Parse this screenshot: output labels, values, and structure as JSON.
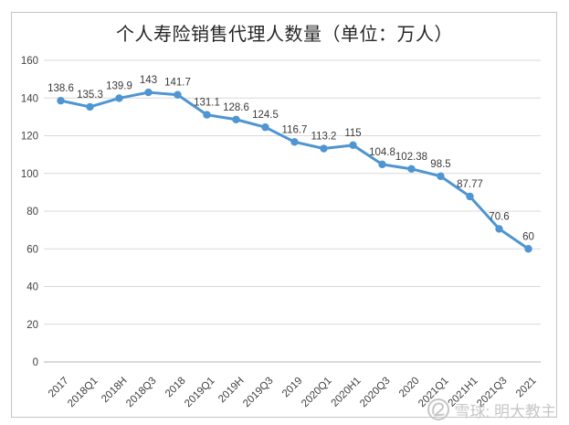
{
  "title": "个人寿险销售代理人数量（单位：万人）",
  "colors": {
    "line": "#4e95d2",
    "grid": "#d9d9d9",
    "axis": "#b3b3b3",
    "tick_text": "#404040",
    "data_label_text": "#3a3a3a",
    "frame_border": "#c3c3c3",
    "watermark": "#c6c6c6"
  },
  "watermark": {
    "logo_icon": "xueqiu-snowball-logo",
    "text": "雪球: 明大教主"
  },
  "chart_data": {
    "type": "line",
    "title": "个人寿险销售代理人数量（单位：万人）",
    "categories": [
      "2017",
      "2018Q1",
      "2018H",
      "2018Q3",
      "2018",
      "2019Q1",
      "2019H",
      "2019Q3",
      "2019",
      "2020Q1",
      "2020H1",
      "2020Q3",
      "2020",
      "2021Q1",
      "2021H1",
      "2021Q3",
      "2021"
    ],
    "values": [
      138.6,
      135.3,
      139.9,
      143,
      141.7,
      131.1,
      128.6,
      124.5,
      116.7,
      113.2,
      115,
      104.8,
      102.38,
      98.5,
      87.77,
      70.6,
      60
    ],
    "value_labels": [
      "138.6",
      "135.3",
      "139.9",
      "143",
      "141.7",
      "131.1",
      "128.6",
      "124.5",
      "116.7",
      "113.2",
      "115",
      "104.8",
      "102.38",
      "98.5",
      "87.77",
      "70.6",
      "60"
    ],
    "xlabel": "",
    "ylabel": "",
    "ylim": [
      0,
      160
    ],
    "yticks": [
      0,
      20,
      40,
      60,
      80,
      100,
      120,
      140,
      160
    ],
    "grid": true,
    "legend_position": "none",
    "marker": "circle",
    "x_tick_rotation": 45
  }
}
